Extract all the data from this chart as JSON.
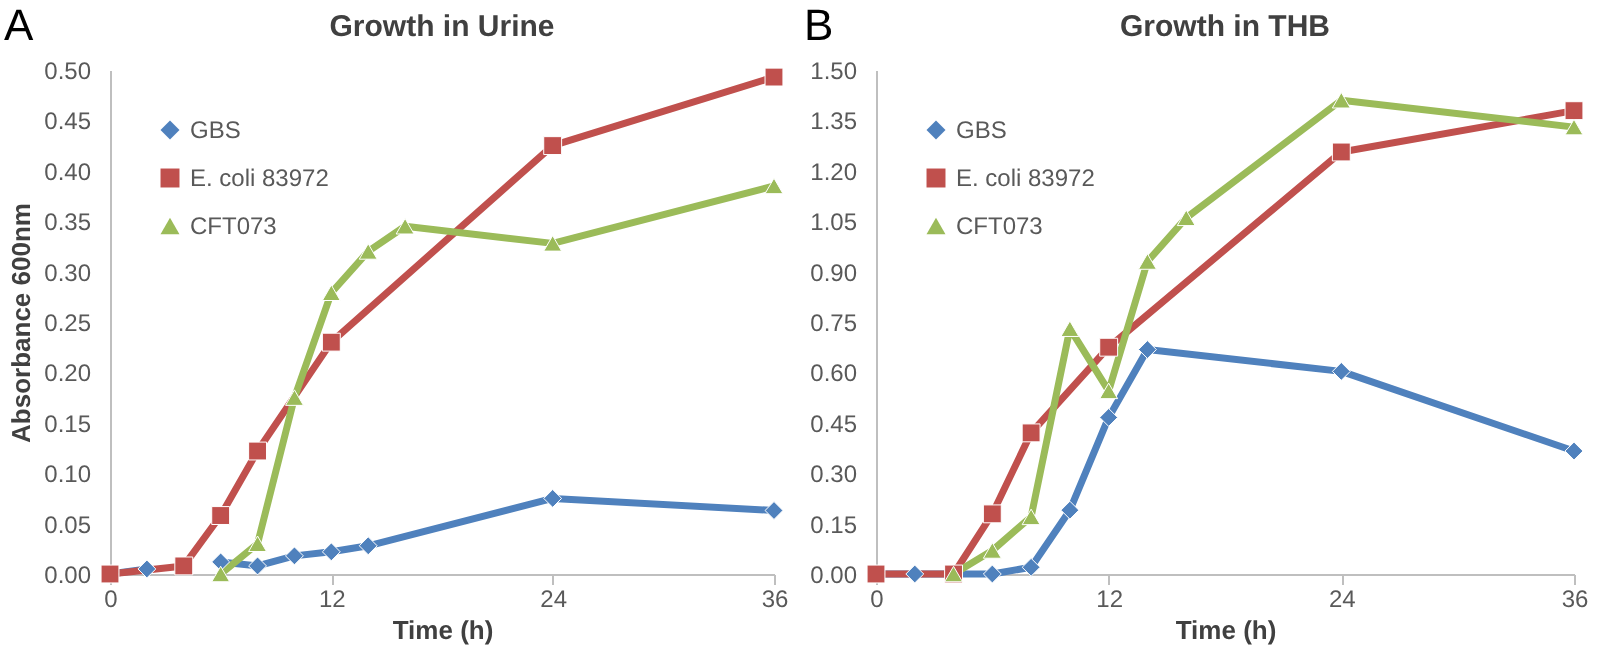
{
  "chart_data": [
    {
      "type": "line",
      "title": "Growth in Urine",
      "xlabel": "Time (h)",
      "ylabel": "Absorbance 600nm",
      "annotations": [
        "A"
      ],
      "legend": "top left",
      "grid": false,
      "xlim": [
        0,
        36
      ],
      "xticks": [
        0,
        12,
        24,
        36
      ],
      "ylim": [
        0,
        0.5
      ],
      "yticks": [
        {
          "value": 0,
          "label": "0.00"
        },
        {
          "value": 0.05,
          "label": "0.05"
        },
        {
          "value": 0.1,
          "label": "0.10"
        },
        {
          "value": 0.15,
          "label": "0.15"
        },
        {
          "value": 0.2,
          "label": "0.20"
        },
        {
          "value": 0.25,
          "label": "0.25"
        },
        {
          "value": 0.3,
          "label": "0.30"
        },
        {
          "value": 0.35,
          "label": "0.35"
        },
        {
          "value": 0.4,
          "label": "0.40"
        },
        {
          "value": 0.45,
          "label": "0.45"
        },
        {
          "value": 0.5,
          "label": "0.50"
        }
      ],
      "series": [
        {
          "name": "GBS",
          "color": "#4f81bd",
          "marker": "diamond",
          "x": [
            0,
            2,
            4,
            6,
            8,
            10,
            12,
            14,
            24,
            36
          ],
          "values": [
            0,
            0.005,
            null,
            0.012,
            0.008,
            0.018,
            0.022,
            0.028,
            0.075,
            0.063
          ]
        },
        {
          "name": "E. coli 83972",
          "color": "#c0504d",
          "marker": "square",
          "x": [
            0,
            4,
            6,
            8,
            12,
            24,
            36
          ],
          "values": [
            0,
            0.008,
            0.058,
            0.122,
            0.23,
            0.425,
            0.493
          ]
        },
        {
          "name": "CFT073",
          "color": "#9bbb59",
          "marker": "triangle",
          "x": [
            6,
            8,
            10,
            12,
            14,
            16,
            24,
            36
          ],
          "values": [
            0,
            0.03,
            0.175,
            0.279,
            0.32,
            0.345,
            0.328,
            0.385
          ]
        }
      ]
    },
    {
      "type": "line",
      "title": "Growth in THB",
      "xlabel": "Time (h)",
      "annotations": [
        "B"
      ],
      "legend": "top left",
      "grid": false,
      "xlim": [
        0,
        36
      ],
      "xticks": [
        0,
        12,
        24,
        36
      ],
      "ylim": [
        0,
        1.5
      ],
      "yticks": [
        {
          "value": 0,
          "label": "0.00"
        },
        {
          "value": 0.15,
          "label": "0.15"
        },
        {
          "value": 0.3,
          "label": "0.30"
        },
        {
          "value": 0.45,
          "label": "0.45"
        },
        {
          "value": 0.6,
          "label": "0.60"
        },
        {
          "value": 0.75,
          "label": "0.75"
        },
        {
          "value": 0.9,
          "label": "0.90"
        },
        {
          "value": 1.05,
          "label": "1.05"
        },
        {
          "value": 1.2,
          "label": "1.20"
        },
        {
          "value": 1.35,
          "label": "1.35"
        },
        {
          "value": 1.5,
          "label": "1.50"
        }
      ],
      "series": [
        {
          "name": "GBS",
          "color": "#4f81bd",
          "marker": "diamond",
          "x": [
            0,
            2,
            4,
            6,
            8,
            10,
            12,
            14,
            24,
            36
          ],
          "values": [
            0,
            0,
            0,
            0,
            0.02,
            0.19,
            0.466,
            0.668,
            0.603,
            0.366
          ]
        },
        {
          "name": "E. coli 83972",
          "color": "#c0504d",
          "marker": "square",
          "x": [
            0,
            4,
            6,
            8,
            12,
            24,
            36
          ],
          "values": [
            0,
            0,
            0.179,
            0.42,
            0.675,
            1.256,
            1.379
          ]
        },
        {
          "name": "CFT073",
          "color": "#9bbb59",
          "marker": "triangle",
          "x": [
            4,
            6,
            8,
            10,
            12,
            14,
            16,
            24,
            36
          ],
          "values": [
            0,
            0.07,
            0.17,
            0.73,
            0.545,
            0.93,
            1.06,
            1.41,
            1.33
          ]
        }
      ]
    }
  ]
}
